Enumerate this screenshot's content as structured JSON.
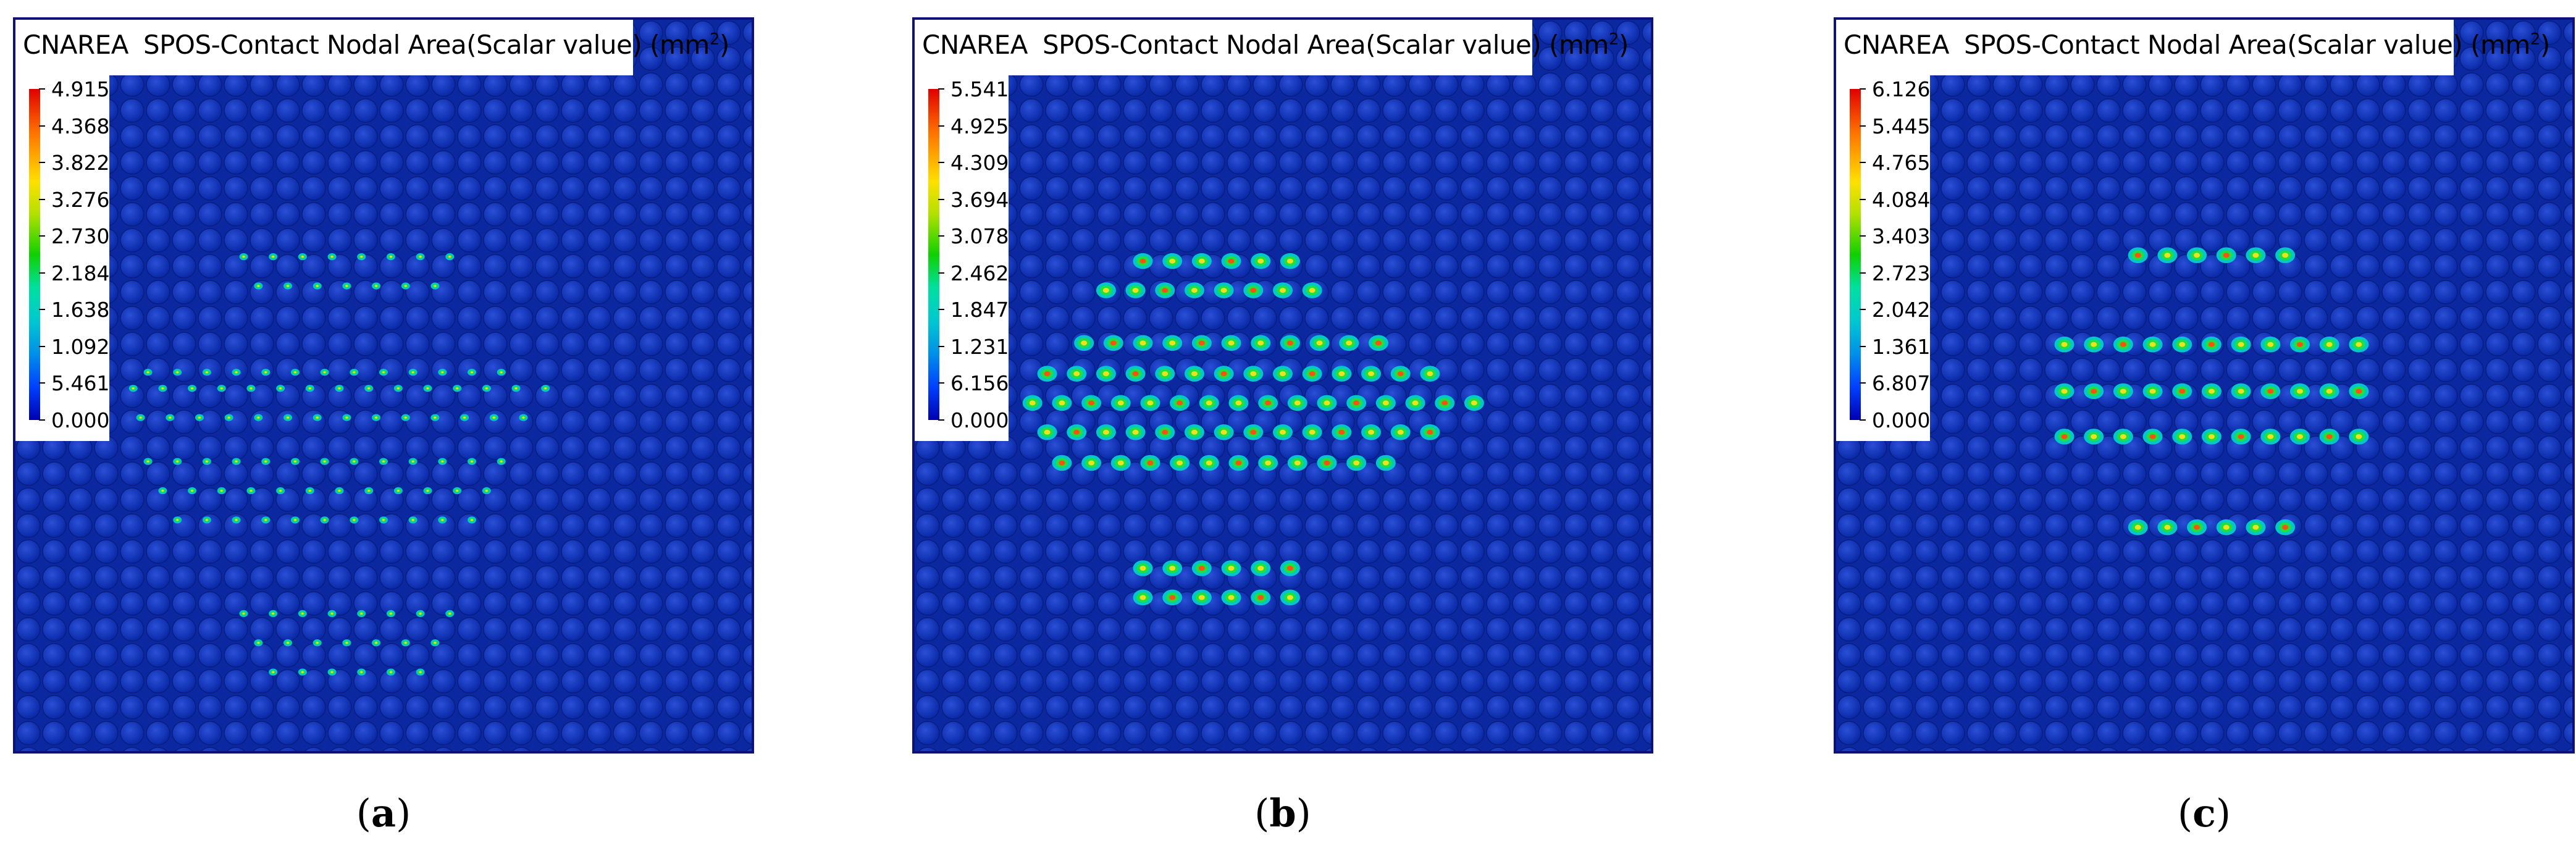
{
  "colors": {
    "panel_border": "#10107a",
    "background": "#0a2bb4"
  },
  "panels": [
    {
      "header": {
        "variable": "CNAREA",
        "description": "SPOS-Contact Nodal Area(Scalar value)",
        "unit_base": "(mm",
        "unit_exp": "2",
        "unit_close": ")"
      },
      "legend": [
        "4.915",
        "4.368",
        "3.822",
        "3.276",
        "2.730",
        "2.184",
        "1.638",
        "1.092",
        "5.461",
        "0.000"
      ],
      "caption": {
        "open": "(",
        "letter": "a",
        "close": ")"
      },
      "contact_rows": [
        {
          "y": 0.162,
          "xs": [
            0.31,
            0.35,
            0.39,
            0.43,
            0.47,
            0.51,
            0.55,
            0.59
          ]
        },
        {
          "y": 0.182,
          "xs": [
            0.33,
            0.37,
            0.41,
            0.45,
            0.49,
            0.53,
            0.57
          ]
        },
        {
          "y": 0.241,
          "xs": [
            0.18,
            0.22,
            0.26,
            0.3,
            0.34,
            0.38,
            0.42,
            0.46,
            0.5,
            0.54,
            0.58,
            0.62,
            0.66
          ]
        },
        {
          "y": 0.252,
          "xs": [
            0.16,
            0.2,
            0.24,
            0.28,
            0.32,
            0.36,
            0.4,
            0.44,
            0.48,
            0.52,
            0.56,
            0.6,
            0.64,
            0.68,
            0.72
          ]
        },
        {
          "y": 0.272,
          "xs": [
            0.17,
            0.21,
            0.25,
            0.29,
            0.33,
            0.37,
            0.41,
            0.45,
            0.49,
            0.53,
            0.57,
            0.61,
            0.65,
            0.69
          ]
        },
        {
          "y": 0.302,
          "xs": [
            0.18,
            0.22,
            0.26,
            0.3,
            0.34,
            0.38,
            0.42,
            0.46,
            0.5,
            0.54,
            0.58,
            0.62,
            0.66
          ]
        },
        {
          "y": 0.322,
          "xs": [
            0.2,
            0.24,
            0.28,
            0.32,
            0.36,
            0.4,
            0.44,
            0.48,
            0.52,
            0.56,
            0.6,
            0.64
          ]
        },
        {
          "y": 0.342,
          "xs": [
            0.22,
            0.26,
            0.3,
            0.34,
            0.38,
            0.42,
            0.46,
            0.5,
            0.54,
            0.58,
            0.62
          ]
        },
        {
          "y": 0.406,
          "xs": [
            0.31,
            0.35,
            0.39,
            0.43,
            0.47,
            0.51,
            0.55,
            0.59
          ]
        },
        {
          "y": 0.426,
          "xs": [
            0.33,
            0.37,
            0.41,
            0.45,
            0.49,
            0.53,
            0.57
          ]
        },
        {
          "y": 0.446,
          "xs": [
            0.35,
            0.39,
            0.43,
            0.47,
            0.51,
            0.55
          ]
        }
      ]
    },
    {
      "header": {
        "variable": "CNAREA",
        "description": "SPOS-Contact Nodal Area(Scalar value)",
        "unit_base": "(mm",
        "unit_exp": "2",
        "unit_close": ")"
      },
      "legend": [
        "5.541",
        "4.925",
        "4.309",
        "3.694",
        "3.078",
        "2.462",
        "1.847",
        "1.231",
        "6.156",
        "0.000"
      ],
      "caption": {
        "open": "(",
        "letter": "b",
        "close": ")"
      },
      "contact_rows": [
        {
          "y": 0.165,
          "xs": [
            0.31,
            0.35,
            0.39,
            0.43,
            0.47,
            0.51
          ]
        },
        {
          "y": 0.185,
          "xs": [
            0.26,
            0.3,
            0.34,
            0.38,
            0.42,
            0.46,
            0.5,
            0.54
          ]
        },
        {
          "y": 0.221,
          "xs": [
            0.23,
            0.27,
            0.31,
            0.35,
            0.39,
            0.43,
            0.47,
            0.51,
            0.55,
            0.59,
            0.63
          ]
        },
        {
          "y": 0.242,
          "xs": [
            0.18,
            0.22,
            0.26,
            0.3,
            0.34,
            0.38,
            0.42,
            0.46,
            0.5,
            0.54,
            0.58,
            0.62,
            0.66,
            0.7
          ]
        },
        {
          "y": 0.262,
          "xs": [
            0.16,
            0.2,
            0.24,
            0.28,
            0.32,
            0.36,
            0.4,
            0.44,
            0.48,
            0.52,
            0.56,
            0.6,
            0.64,
            0.68,
            0.72,
            0.76
          ]
        },
        {
          "y": 0.282,
          "xs": [
            0.18,
            0.22,
            0.26,
            0.3,
            0.34,
            0.38,
            0.42,
            0.46,
            0.5,
            0.54,
            0.58,
            0.62,
            0.66,
            0.7
          ]
        },
        {
          "y": 0.303,
          "xs": [
            0.2,
            0.24,
            0.28,
            0.32,
            0.36,
            0.4,
            0.44,
            0.48,
            0.52,
            0.56,
            0.6,
            0.64
          ]
        },
        {
          "y": 0.375,
          "xs": [
            0.31,
            0.35,
            0.39,
            0.43,
            0.47,
            0.51
          ]
        },
        {
          "y": 0.395,
          "xs": [
            0.31,
            0.35,
            0.39,
            0.43,
            0.47,
            0.51
          ]
        }
      ]
    },
    {
      "header": {
        "variable": "CNAREA",
        "description": "SPOS-Contact Nodal Area(Scalar value)",
        "unit_base": "(mm",
        "unit_exp": "2",
        "unit_close": ")"
      },
      "legend": [
        "6.126",
        "5.445",
        "4.765",
        "4.084",
        "3.403",
        "2.723",
        "2.042",
        "1.361",
        "6.807",
        "0.000"
      ],
      "caption": {
        "open": "(",
        "letter": "c",
        "close": ")"
      },
      "contact_rows": [
        {
          "y": 0.161,
          "xs": [
            0.41,
            0.45,
            0.49,
            0.53,
            0.57,
            0.61
          ]
        },
        {
          "y": 0.222,
          "xs": [
            0.31,
            0.35,
            0.39,
            0.43,
            0.47,
            0.51,
            0.55,
            0.59,
            0.63,
            0.67,
            0.71
          ]
        },
        {
          "y": 0.254,
          "xs": [
            0.31,
            0.35,
            0.39,
            0.43,
            0.47,
            0.51,
            0.55,
            0.59,
            0.63,
            0.67,
            0.71
          ]
        },
        {
          "y": 0.285,
          "xs": [
            0.31,
            0.35,
            0.39,
            0.43,
            0.47,
            0.51,
            0.55,
            0.59,
            0.63,
            0.67,
            0.71
          ]
        },
        {
          "y": 0.347,
          "xs": [
            0.41,
            0.45,
            0.49,
            0.53,
            0.57,
            0.61
          ]
        }
      ]
    }
  ]
}
